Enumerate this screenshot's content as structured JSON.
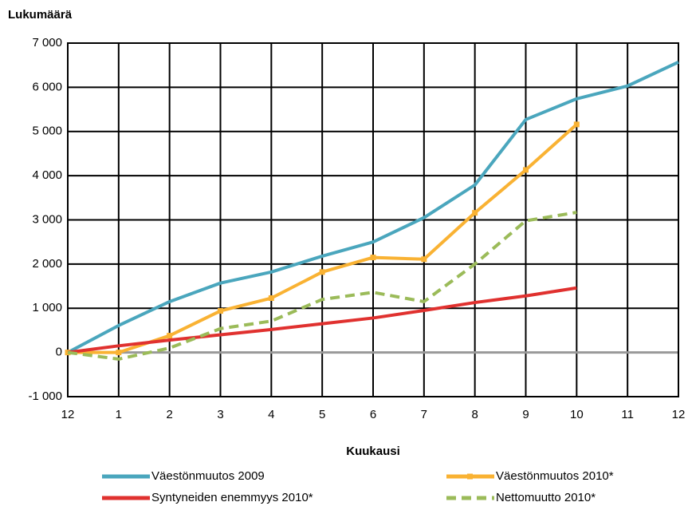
{
  "chart_data": {
    "type": "line",
    "y_axis_label": "Lukumäärä",
    "x_axis_label": "Kuukausi",
    "categories": [
      "12",
      "1",
      "2",
      "3",
      "4",
      "5",
      "6",
      "7",
      "8",
      "9",
      "10",
      "11",
      "12"
    ],
    "series": [
      {
        "name": "Väestönmuutos 2009",
        "color": "#4aa6bd",
        "values": [
          0,
          610,
          1150,
          1570,
          1820,
          2180,
          2500,
          3050,
          3790,
          5270,
          5740,
          6030,
          6570
        ]
      },
      {
        "name": "Väestönmuutos 2010*",
        "color": "#f9b233",
        "marker": "square",
        "values": [
          0,
          0,
          380,
          940,
          1230,
          1820,
          2150,
          2110,
          3160,
          4130,
          5160,
          null,
          null
        ]
      },
      {
        "name": "Syntyneiden enemmyys 2010*",
        "color": "#e0312f",
        "values": [
          0,
          150,
          280,
          400,
          520,
          650,
          780,
          950,
          1130,
          1280,
          1460,
          null,
          null
        ]
      },
      {
        "name": "Nettomuutto 2010*",
        "color": "#9bbb59",
        "dash": true,
        "values": [
          0,
          -150,
          100,
          540,
          710,
          1200,
          1360,
          1150,
          2000,
          2980,
          3170,
          null,
          null
        ]
      }
    ],
    "ylim": [
      -1000,
      7000
    ],
    "yticks": [
      {
        "value": -1000,
        "label": "-1 000"
      },
      0,
      {
        "value": 1000,
        "label": "1 000"
      },
      {
        "value": 2000,
        "label": "2 000"
      },
      {
        "value": 3000,
        "label": "3 000"
      },
      {
        "value": 4000,
        "label": "4 000"
      },
      {
        "value": 5000,
        "label": "5 000"
      },
      {
        "value": 6000,
        "label": "6 000"
      },
      {
        "value": 7000,
        "label": "7 000"
      }
    ],
    "grid": true
  }
}
